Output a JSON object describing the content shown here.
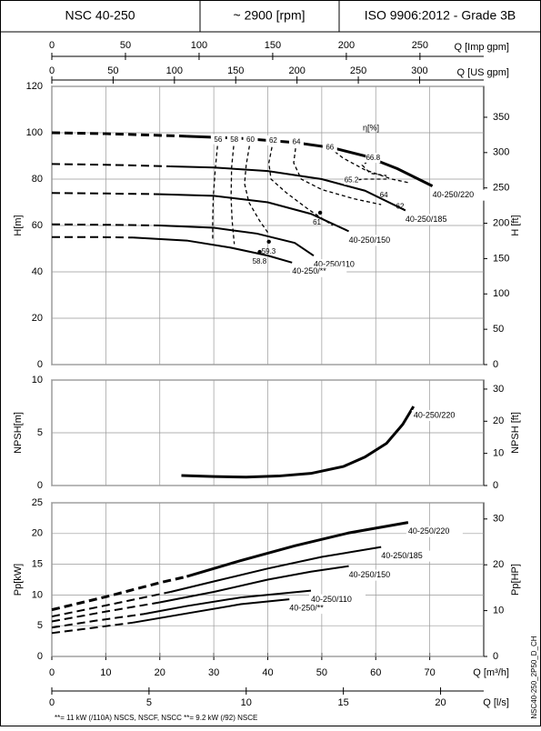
{
  "header": {
    "model": "NSC 40-250",
    "speed": "~ 2900 [rpm]",
    "standard": "ISO 9906:2012 - Grade 3B"
  },
  "q_axes": [
    {
      "label": "Q [Imp gpm]",
      "position": "top",
      "lim": [
        0,
        293.3
      ],
      "ticks": [
        0,
        50,
        100,
        150,
        200,
        250
      ]
    },
    {
      "label": "Q [US gpm]",
      "position": "top",
      "lim": [
        0,
        352.3
      ],
      "ticks": [
        0,
        50,
        100,
        150,
        200,
        250,
        300
      ]
    },
    {
      "label": "Q [m³/h]",
      "position": "bottom",
      "lim": [
        0,
        80
      ],
      "ticks": [
        0,
        10,
        20,
        30,
        40,
        50,
        60,
        70
      ]
    },
    {
      "label": "Q [l/s]",
      "position": "bottom",
      "lim": [
        0,
        22.22
      ],
      "ticks": [
        0,
        5,
        10,
        15,
        20
      ]
    }
  ],
  "chart_data": [
    {
      "type": "line",
      "ylabel": "H[m]",
      "y2label": "H [ft]",
      "xlim": [
        0,
        80
      ],
      "xticks": [
        0,
        10,
        20,
        30,
        40,
        50,
        60,
        70
      ],
      "ylim": [
        0,
        120
      ],
      "yticks": [
        0,
        20,
        40,
        60,
        80,
        100,
        120
      ],
      "y2lim": [
        0,
        393.7
      ],
      "y2ticks": [
        0,
        50,
        100,
        150,
        200,
        250,
        300,
        350
      ],
      "grid": true,
      "curves": [
        {
          "name": "40-250/220",
          "color": "#000000",
          "dashed": {
            "x": [
              0,
              10,
              25
            ],
            "values": [
              100,
              99.6,
              98.5
            ]
          },
          "solid": {
            "x": [
              25,
              35,
              45,
              52,
              58,
              64,
              70.5
            ],
            "values": [
              98.5,
              97.6,
              95.8,
              93.5,
              90,
              84.5,
              77
            ]
          }
        },
        {
          "name": "40-250/185",
          "color": "#000000",
          "dashed": {
            "x": [
              0,
              10,
              22
            ],
            "values": [
              86.5,
              86.2,
              85.5
            ]
          },
          "solid": {
            "x": [
              22,
              30,
              40,
              50,
              58,
              65.5
            ],
            "values": [
              85.5,
              85,
              83.5,
              80,
              75,
              66.5
            ]
          }
        },
        {
          "name": "40-250/150",
          "color": "#000000",
          "dashed": {
            "x": [
              0,
              10,
              20
            ],
            "values": [
              74,
              73.8,
              73.5
            ]
          },
          "solid": {
            "x": [
              20,
              30,
              40,
              48,
              55
            ],
            "values": [
              73.5,
              72.8,
              70,
              65,
              57.5
            ]
          }
        },
        {
          "name": "40-250/110",
          "color": "#000000",
          "dashed": {
            "x": [
              0,
              10,
              20
            ],
            "values": [
              60.5,
              60.3,
              60
            ]
          },
          "solid": {
            "x": [
              20,
              30,
              38,
              45,
              48.5
            ],
            "values": [
              60,
              59,
              56.5,
              52.5,
              47
            ]
          }
        },
        {
          "name": "40-250/**",
          "color": "#000000",
          "dashed": {
            "x": [
              0,
              8,
              15
            ],
            "values": [
              55,
              55,
              54.8
            ]
          },
          "solid": {
            "x": [
              15,
              25,
              33,
              40,
              44.5
            ],
            "values": [
              54.8,
              53.5,
              50.5,
              47,
              44
            ]
          }
        }
      ],
      "efficiency_label": "η[%]",
      "efficiency": [
        {
          "label": "56",
          "x": [
            30.8,
            30.3,
            29.9,
            29.8,
            29.8
          ],
          "values": [
            97,
            85,
            72,
            62,
            54
          ]
        },
        {
          "label": "58",
          "x": [
            33.8,
            33.3,
            33.2,
            33.4,
            33.8
          ],
          "values": [
            97,
            85,
            72,
            62,
            52
          ]
        },
        {
          "label": "60",
          "x": [
            36.8,
            36,
            35.7,
            36.5,
            38.5,
            40
          ],
          "values": [
            97,
            86,
            78,
            70,
            62,
            57
          ]
        },
        {
          "label": "62",
          "x": [
            41,
            40.2,
            40.6,
            43.5,
            47.5,
            52
          ],
          "values": [
            96.5,
            87,
            80,
            74,
            67,
            60
          ]
        },
        {
          "label": "64",
          "x": [
            45.3,
            44.8,
            46.2,
            50,
            56,
            61
          ],
          "values": [
            96,
            87,
            80,
            75.5,
            71.5,
            69
          ]
        },
        {
          "label": "66",
          "x": [
            51.5,
            54,
            58,
            63,
            66
          ],
          "values": [
            93.5,
            89,
            84,
            80,
            78.5
          ]
        },
        {
          "label": "66.8",
          "x": [
            59.5,
            57.5,
            59,
            62
          ],
          "values": [
            89,
            86,
            82.5,
            81.5
          ]
        },
        {
          "label": "65.2",
          "x": [
            55.5,
            58,
            62
          ],
          "values": [
            79.5,
            80,
            80
          ]
        },
        {
          "label": "64",
          "x": [
            61.5
          ],
          "values": [
            73
          ]
        },
        {
          "label": "62",
          "x": [
            64.5
          ],
          "values": [
            68
          ]
        },
        {
          "label": "61",
          "x": [
            49.7
          ],
          "values": [
            65.5
          ],
          "dot": true
        },
        {
          "label": "59.3",
          "x": [
            40.2
          ],
          "values": [
            53
          ],
          "dot": true
        },
        {
          "label": "58.8",
          "x": [
            38.5
          ],
          "values": [
            48.6
          ],
          "dot": true
        }
      ]
    },
    {
      "type": "line",
      "ylabel": "NPSH[m]",
      "y2label": "NPSH [ft]",
      "xlim": [
        0,
        80
      ],
      "xticks": [
        0,
        10,
        20,
        30,
        40,
        50,
        60,
        70
      ],
      "ylim": [
        0,
        10
      ],
      "yticks": [
        0,
        5,
        10
      ],
      "y2lim": [
        0,
        32.81
      ],
      "y2ticks": [
        0,
        10,
        20,
        30
      ],
      "grid": true,
      "curves": [
        {
          "name": "40-250/220",
          "color": "#000000",
          "solid": {
            "x": [
              24,
              30,
              36,
              42,
              48,
              54,
              58,
              62,
              65,
              67
            ],
            "values": [
              0.95,
              0.85,
              0.8,
              0.9,
              1.15,
              1.8,
              2.7,
              4,
              5.8,
              7.5
            ]
          }
        }
      ]
    },
    {
      "type": "line",
      "ylabel": "Pp[kW]",
      "y2label": "Pp[HP]",
      "xlim": [
        0,
        80
      ],
      "xticks": [
        0,
        10,
        20,
        30,
        40,
        50,
        60,
        70
      ],
      "ylim": [
        0,
        25
      ],
      "yticks": [
        0,
        5,
        10,
        15,
        20,
        25
      ],
      "y2lim": [
        0,
        33.53
      ],
      "y2ticks": [
        0,
        10,
        20,
        30
      ],
      "grid": true,
      "curves": [
        {
          "name": "40-250/220",
          "color": "#000000",
          "dashed": {
            "x": [
              0,
              10,
              20,
              25
            ],
            "values": [
              7.6,
              9.7,
              12,
              13
            ]
          },
          "solid": {
            "x": [
              25,
              35,
              45,
              55,
              66
            ],
            "values": [
              13,
              15.6,
              18,
              20.1,
              21.8
            ]
          }
        },
        {
          "name": "40-250/185",
          "color": "#000000",
          "dashed": {
            "x": [
              0,
              10,
              22
            ],
            "values": [
              6.5,
              8.3,
              10.5
            ]
          },
          "solid": {
            "x": [
              22,
              30,
              40,
              50,
              61
            ],
            "values": [
              10.5,
              12.2,
              14.3,
              16.2,
              17.8
            ]
          }
        },
        {
          "name": "40-250/150",
          "color": "#000000",
          "dashed": {
            "x": [
              0,
              10,
              20
            ],
            "values": [
              5.7,
              7.3,
              8.8
            ]
          },
          "solid": {
            "x": [
              20,
              30,
              40,
              48,
              55
            ],
            "values": [
              8.8,
              10.5,
              12.5,
              13.8,
              14.7
            ]
          }
        },
        {
          "name": "40-250/110",
          "color": "#000000",
          "dashed": {
            "x": [
              0,
              8,
              17
            ],
            "values": [
              4.7,
              5.8,
              6.9
            ]
          },
          "solid": {
            "x": [
              17,
              25,
              35,
              48
            ],
            "values": [
              6.9,
              8.2,
              9.6,
              10.7
            ]
          }
        },
        {
          "name": "40-250/**",
          "color": "#000000",
          "dashed": {
            "x": [
              0,
              8,
              15
            ],
            "values": [
              3.8,
              4.7,
              5.5
            ]
          },
          "solid": {
            "x": [
              15,
              25,
              35,
              44
            ],
            "values": [
              5.5,
              7,
              8.5,
              9.3
            ]
          }
        }
      ]
    }
  ],
  "footnote": "**= 11 kW (/110A) NSCS, NSCF, NSCC   **= 9.2 kW (/92) NSCE",
  "side_code": "NSC40-250_2P50_D_CH"
}
